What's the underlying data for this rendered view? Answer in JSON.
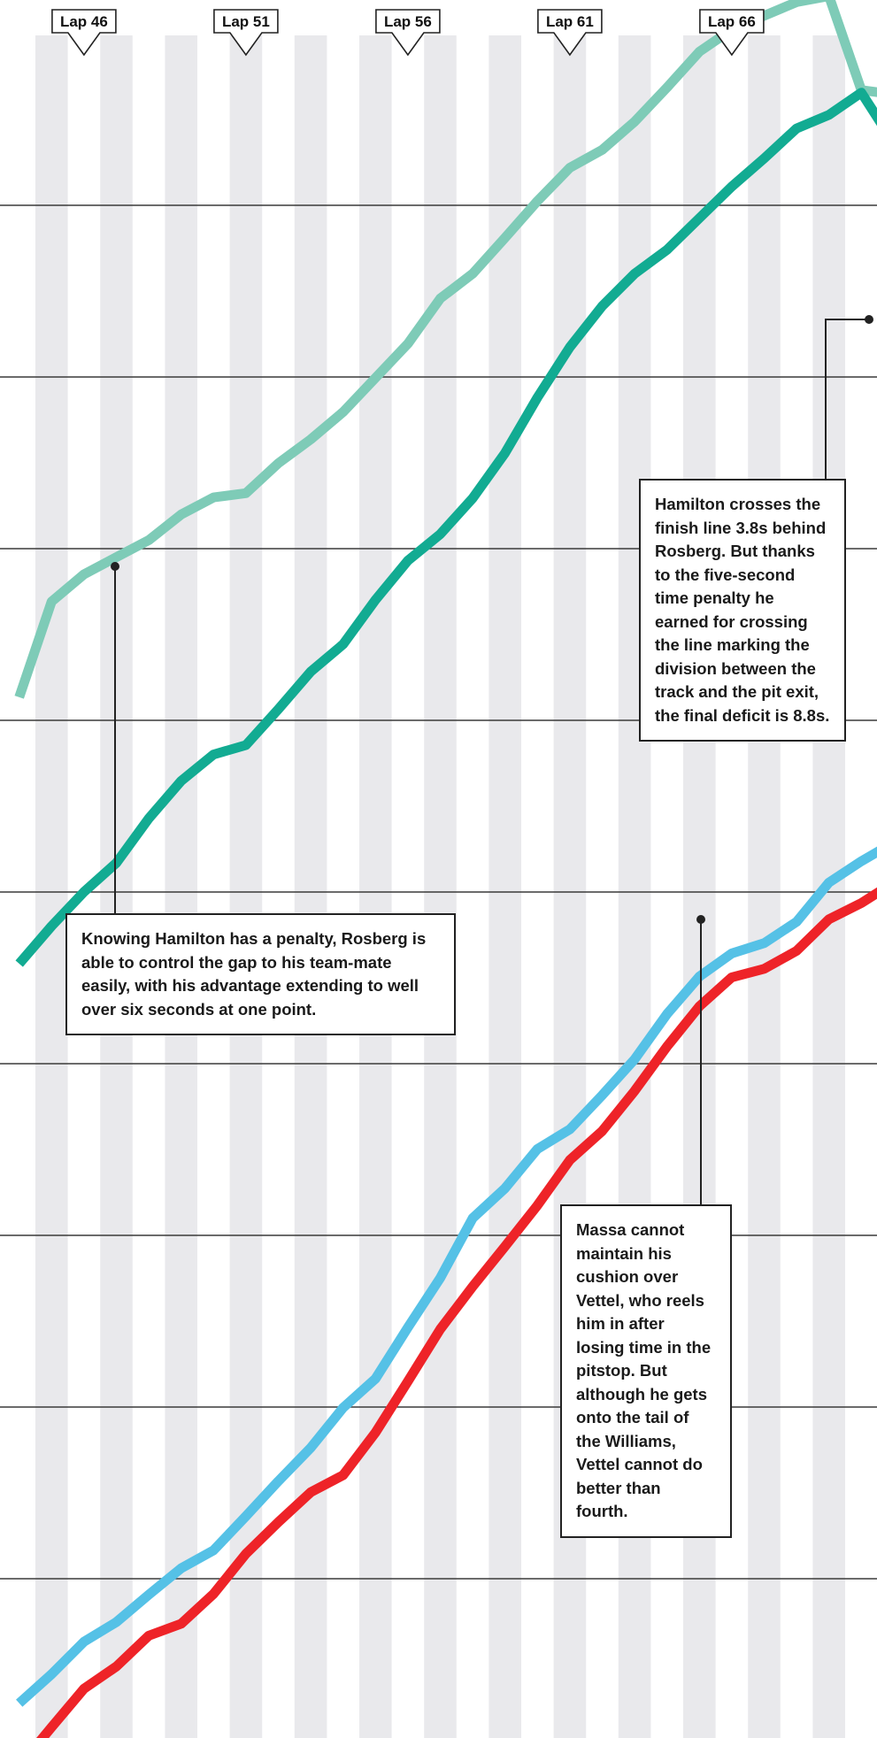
{
  "chart_data": {
    "type": "line",
    "x_unit": "lap",
    "lap_markers": [
      "Lap 46",
      "Lap 51",
      "Lap 56",
      "Lap 61",
      "Lap 66"
    ],
    "x": [
      44,
      45,
      46,
      47,
      48,
      49,
      50,
      51,
      52,
      53,
      54,
      55,
      56,
      57,
      58,
      59,
      60,
      61,
      62,
      63,
      64,
      65,
      66,
      67,
      68,
      69,
      70,
      71,
      72
    ],
    "series": [
      {
        "color": "#7ecbb7",
        "values": [
          1.74,
          0.62,
          0.3,
          0.1,
          -0.1,
          -0.4,
          -0.6,
          -0.65,
          -1.0,
          -1.28,
          -1.6,
          -2.0,
          -2.4,
          -2.93,
          -3.22,
          -3.64,
          -4.07,
          -4.46,
          -4.67,
          -5.0,
          -5.4,
          -5.82,
          -6.08,
          -6.24,
          -6.4,
          -6.47,
          -5.37,
          -5.32,
          -5.42
        ]
      },
      {
        "color": "#12ab92",
        "values": [
          4.86,
          4.42,
          4.02,
          3.68,
          3.16,
          2.72,
          2.41,
          2.3,
          1.88,
          1.44,
          1.12,
          0.6,
          0.14,
          -0.17,
          -0.59,
          -1.12,
          -1.77,
          -2.36,
          -2.84,
          -3.22,
          -3.5,
          -3.87,
          -4.24,
          -4.57,
          -4.92,
          -5.08,
          -5.34,
          -4.75,
          -4.22
        ]
      },
      {
        "color": "#55c1e6",
        "values": [
          13.52,
          13.18,
          12.8,
          12.57,
          12.25,
          11.94,
          11.73,
          11.33,
          10.92,
          10.53,
          10.06,
          9.72,
          9.12,
          8.54,
          7.84,
          7.49,
          7.03,
          6.8,
          6.4,
          5.98,
          5.45,
          5.01,
          4.74,
          4.62,
          4.37,
          3.91,
          3.66,
          3.44,
          3.32
        ]
      },
      {
        "color": "#ee2328",
        "values": [
          14.26,
          13.8,
          13.35,
          13.09,
          12.73,
          12.59,
          12.24,
          11.77,
          11.4,
          11.05,
          10.85,
          10.35,
          9.75,
          9.14,
          8.64,
          8.17,
          7.69,
          7.16,
          6.82,
          6.35,
          5.83,
          5.36,
          5.02,
          4.92,
          4.71,
          4.34,
          4.15,
          3.91,
          3.69
        ]
      }
    ],
    "annotations": [
      "Knowing Hamilton has a penalty, Rosberg is able to control the gap to his team-mate easily, with his advantage extending to well over six seconds at one point.",
      "Hamilton crosses the finish line 3.8s behind Rosberg. But thanks to the five-second time penalty he earned for crossing the line marking the division between the track and the pit exit, the final deficit is 8.8s.",
      "Massa cannot maintain his cushion over Vettel, who reels him in after losing time in the pitstop. But although he gets onto the tail of the Williams, Vettel cannot do better than fourth."
    ]
  },
  "colors": {
    "stripe": "#e9e9ec",
    "gridline": "#3a3a3a",
    "leader": "#222222"
  }
}
